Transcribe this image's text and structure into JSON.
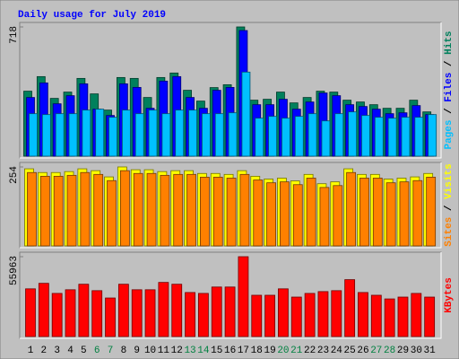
{
  "chart_data": {
    "type": "bar",
    "title": "Daily usage for July 2019",
    "categories": [
      "1",
      "2",
      "3",
      "4",
      "5",
      "6",
      "7",
      "8",
      "9",
      "10",
      "11",
      "12",
      "13",
      "14",
      "15",
      "16",
      "17",
      "18",
      "19",
      "20",
      "21",
      "22",
      "23",
      "24",
      "25",
      "26",
      "27",
      "28",
      "29",
      "30",
      "31"
    ],
    "category_colors": [
      "#000000",
      "#000000",
      "#000000",
      "#000000",
      "#000000",
      "#008040",
      "#008040",
      "#000000",
      "#000000",
      "#000000",
      "#000000",
      "#000000",
      "#008040",
      "#008040",
      "#000000",
      "#000000",
      "#000000",
      "#000000",
      "#000000",
      "#008040",
      "#008040",
      "#000000",
      "#000000",
      "#000000",
      "#000000",
      "#000000",
      "#008040",
      "#008040",
      "#000000",
      "#000000",
      "#000000"
    ],
    "panels": [
      {
        "type": "bar",
        "ylim": [
          0,
          718
        ],
        "yticks": [
          718
        ],
        "series": [
          {
            "name": "Hits",
            "color": "#00805c",
            "values": [
              361,
              442,
              321,
              356,
              432,
              346,
              256,
              437,
              432,
              326,
              437,
              462,
              366,
              306,
              381,
              397,
              718,
              311,
              316,
              356,
              296,
              326,
              361,
              356,
              311,
              301,
              286,
              266,
              266,
              311,
              246
            ]
          },
          {
            "name": "Files",
            "color": "#0000ff",
            "values": [
              326,
              407,
              291,
              336,
              402,
              261,
              226,
              402,
              382,
              266,
              417,
              442,
              326,
              266,
              366,
              382,
              698,
              286,
              286,
              316,
              261,
              301,
              351,
              336,
              286,
              276,
              261,
              236,
              241,
              281,
              231
            ]
          },
          {
            "name": "Pages",
            "color": "#00c0ff",
            "values": [
              236,
              231,
              236,
              236,
              256,
              261,
              216,
              256,
              236,
              256,
              236,
              256,
              256,
              236,
              236,
              241,
              467,
              211,
              221,
              211,
              221,
              236,
              196,
              236,
              246,
              226,
              216,
              211,
              216,
              216,
              231
            ]
          }
        ]
      },
      {
        "type": "bar",
        "ylim": [
          0,
          254
        ],
        "yticks": [
          254
        ],
        "series": [
          {
            "name": "Visits",
            "color": "#ffff00",
            "values": [
              248,
              236,
              236,
              239,
              248,
              242,
              222,
              254,
              245,
              245,
              239,
              242,
              242,
              233,
              233,
              230,
              242,
              224,
              215,
              218,
              209,
              230,
              200,
              206,
              248,
              230,
              230,
              215,
              218,
              222,
              233
            ]
          },
          {
            "name": "Sites",
            "color": "#ff8000",
            "values": [
              236,
              224,
              224,
              227,
              236,
              230,
              210,
              242,
              233,
              233,
              227,
              230,
              230,
              221,
              221,
              218,
              230,
              212,
              203,
              206,
              197,
              218,
              188,
              194,
              236,
              218,
              218,
              203,
              206,
              210,
              221
            ]
          }
        ]
      },
      {
        "type": "bar",
        "ylim": [
          0,
          55963
        ],
        "yticks": [
          55963
        ],
        "series": [
          {
            "name": "KBytes",
            "color": "#ff0000",
            "values": [
              33440,
              37300,
              30230,
              32800,
              36660,
              32160,
              27020,
              36660,
              32800,
              32800,
              37940,
              36660,
              30870,
              30230,
              34720,
              34720,
              55963,
              28940,
              28940,
              33440,
              27660,
              30230,
              31510,
              32160,
              39870,
              30870,
              28940,
              26370,
              27660,
              30230,
              27660
            ]
          }
        ]
      }
    ]
  }
}
